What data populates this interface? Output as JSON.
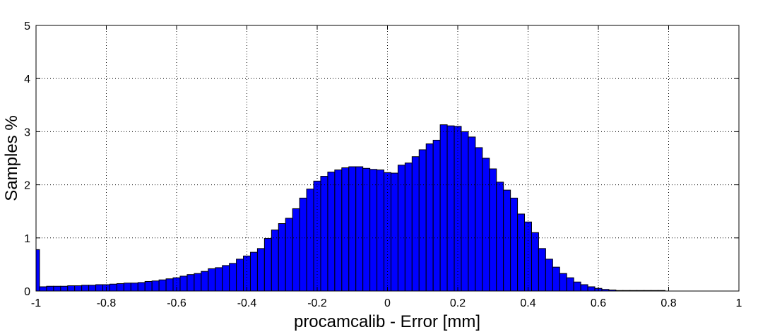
{
  "chart_data": {
    "type": "histogram",
    "xlabel": "procamcalib - Error [mm]",
    "ylabel": "Samples %",
    "color": "#0000ff",
    "edgecolor": "#000000",
    "grid": true,
    "xlim": [
      -1,
      1
    ],
    "ylim": [
      0,
      5
    ],
    "xticks": [
      -1,
      -0.8,
      -0.6,
      -0.4,
      -0.2,
      0,
      0.2,
      0.4,
      0.6,
      0.8,
      1
    ],
    "yticks": [
      0,
      1,
      2,
      3,
      4,
      5
    ],
    "bins": [
      -1.01,
      -0.99,
      -0.97,
      -0.95,
      -0.93,
      -0.91,
      -0.89,
      -0.87,
      -0.85,
      -0.83,
      -0.81,
      -0.79,
      -0.77,
      -0.75,
      -0.73,
      -0.71,
      -0.69,
      -0.67,
      -0.65,
      -0.63,
      -0.61,
      -0.59,
      -0.57,
      -0.55,
      -0.53,
      -0.51,
      -0.49,
      -0.47,
      -0.45,
      -0.43,
      -0.41,
      -0.39,
      -0.37,
      -0.35,
      -0.33,
      -0.31,
      -0.29,
      -0.27,
      -0.25,
      -0.23,
      -0.21,
      -0.19,
      -0.17,
      -0.15,
      -0.13,
      -0.11,
      -0.09,
      -0.07,
      -0.05,
      -0.03,
      -0.01,
      0.01,
      0.03,
      0.05,
      0.07,
      0.09,
      0.11,
      0.13,
      0.15,
      0.17,
      0.19,
      0.21,
      0.23,
      0.25,
      0.27,
      0.29,
      0.31,
      0.33,
      0.35,
      0.37,
      0.39,
      0.41,
      0.43,
      0.45,
      0.47,
      0.49,
      0.51,
      0.53,
      0.55,
      0.57,
      0.59,
      0.61,
      0.63,
      0.65,
      0.67,
      0.69,
      0.71,
      0.73,
      0.75,
      0.77,
      0.79,
      0.81,
      0.83,
      0.85,
      0.87,
      0.89,
      0.91,
      0.93,
      0.95,
      0.97,
      0.99,
      1.01
    ],
    "values": [
      0.78,
      0.08,
      0.09,
      0.09,
      0.09,
      0.1,
      0.1,
      0.11,
      0.11,
      0.12,
      0.12,
      0.13,
      0.14,
      0.15,
      0.15,
      0.16,
      0.18,
      0.19,
      0.21,
      0.23,
      0.25,
      0.28,
      0.31,
      0.33,
      0.37,
      0.42,
      0.44,
      0.48,
      0.52,
      0.6,
      0.66,
      0.73,
      0.8,
      0.99,
      1.15,
      1.27,
      1.37,
      1.55,
      1.75,
      1.92,
      2.07,
      2.16,
      2.24,
      2.28,
      2.32,
      2.34,
      2.34,
      2.31,
      2.29,
      2.28,
      2.23,
      2.22,
      2.37,
      2.41,
      2.53,
      2.66,
      2.77,
      2.84,
      3.13,
      3.11,
      3.1,
      3.0,
      2.9,
      2.7,
      2.5,
      2.3,
      2.05,
      1.9,
      1.75,
      1.45,
      1.3,
      1.1,
      0.8,
      0.6,
      0.45,
      0.33,
      0.25,
      0.17,
      0.12,
      0.08,
      0.05,
      0.03,
      0.02,
      0.01,
      0.01,
      0.01,
      0.01,
      0.01,
      0.01,
      0.01,
      0,
      0,
      0,
      0,
      0,
      0,
      0,
      0,
      0,
      0,
      0
    ]
  }
}
